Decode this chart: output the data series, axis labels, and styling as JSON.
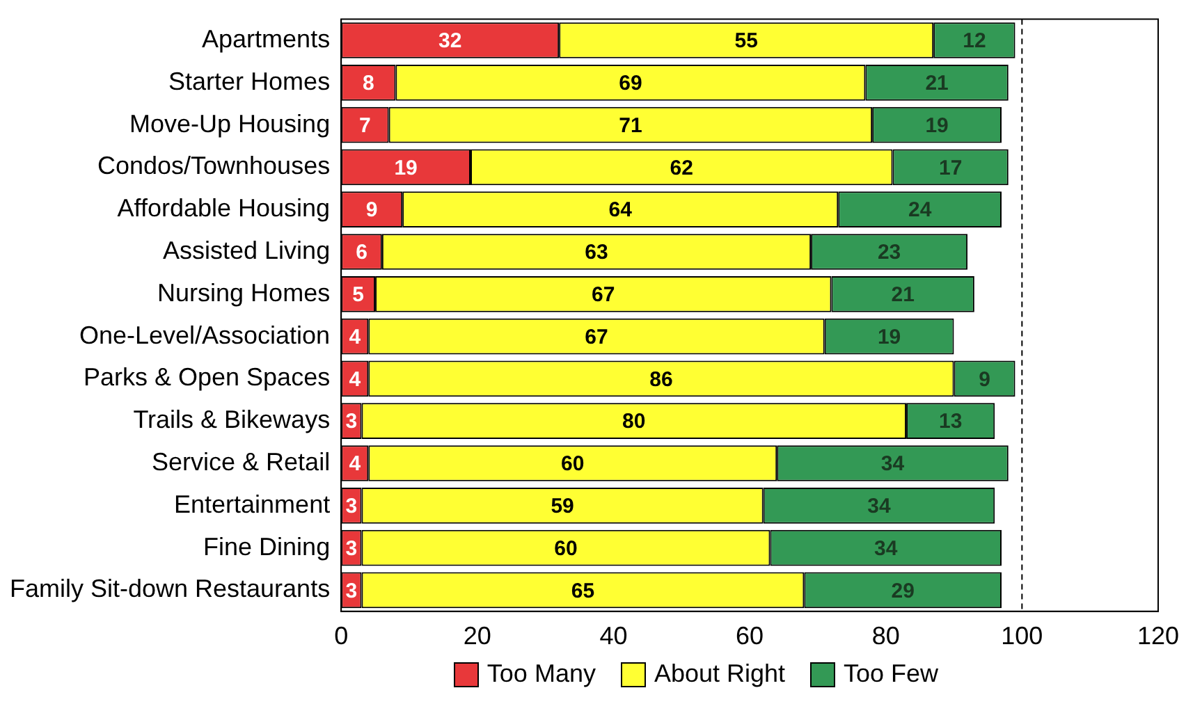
{
  "chart_data": {
    "type": "bar",
    "orientation": "horizontal",
    "stacked": true,
    "categories": [
      "Apartments",
      "Starter Homes",
      "Move-Up Housing",
      "Condos/Townhouses",
      "Affordable Housing",
      "Assisted Living",
      "Nursing Homes",
      "One-Level/Association",
      "Parks & Open Spaces",
      "Trails & Bikeways",
      "Service & Retail",
      "Entertainment",
      "Fine Dining",
      "Family Sit-down Restaurants"
    ],
    "series": [
      {
        "name": "Too Many",
        "color": "#e8383a",
        "values": [
          32,
          8,
          7,
          19,
          9,
          6,
          5,
          4,
          4,
          3,
          4,
          3,
          3,
          3
        ]
      },
      {
        "name": "About Right",
        "color": "#ffff33",
        "values": [
          55,
          69,
          71,
          62,
          64,
          63,
          67,
          67,
          86,
          80,
          60,
          59,
          60,
          65
        ]
      },
      {
        "name": "Too Few",
        "color": "#339955",
        "values": [
          12,
          21,
          19,
          17,
          24,
          23,
          21,
          19,
          9,
          13,
          34,
          34,
          34,
          29
        ]
      }
    ],
    "xlim": [
      0,
      120
    ],
    "xticks": [
      0,
      20,
      40,
      60,
      80,
      100,
      120
    ],
    "ref_lines": [
      {
        "axis": "x",
        "value": 100,
        "line_style": "dashed",
        "color": "#000000"
      }
    ],
    "data_labels": true,
    "legend": "bottom",
    "grid": false
  }
}
